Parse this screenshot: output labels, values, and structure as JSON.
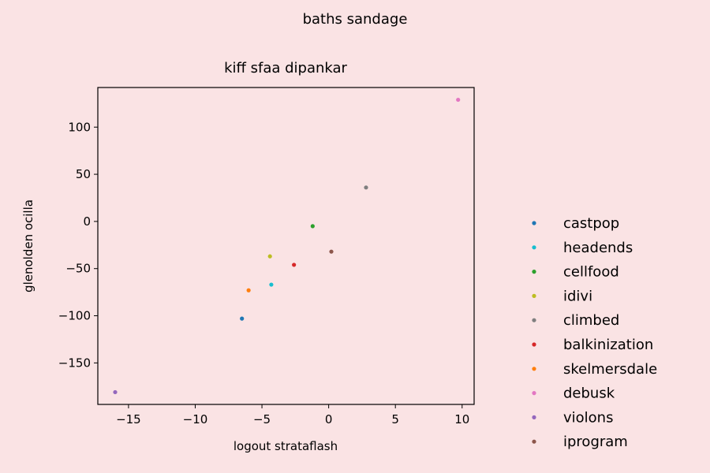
{
  "chart_data": {
    "type": "scatter",
    "suptitle": "baths sandage",
    "title": "kiff sfaa dipankar",
    "xlabel": "logout strataflash",
    "ylabel": "glenolden ocilla",
    "xlim": [
      -17.3,
      10.9
    ],
    "ylim": [
      -194,
      142
    ],
    "xticks": [
      -15,
      -10,
      -5,
      0,
      5,
      10
    ],
    "yticks": [
      -150,
      -100,
      -50,
      0,
      50,
      100
    ],
    "grid": false,
    "legend_position": "right",
    "series": [
      {
        "name": "castpop",
        "color": "#1f77b4",
        "x": [
          -6.5
        ],
        "y": [
          -103
        ]
      },
      {
        "name": "headends",
        "color": "#17becf",
        "x": [
          -4.3
        ],
        "y": [
          -67
        ]
      },
      {
        "name": "cellfood",
        "color": "#2ca02c",
        "x": [
          -1.2
        ],
        "y": [
          -5
        ]
      },
      {
        "name": "idivi",
        "color": "#bcbd22",
        "x": [
          -4.4
        ],
        "y": [
          -37
        ]
      },
      {
        "name": "climbed",
        "color": "#7f7f7f",
        "x": [
          2.8
        ],
        "y": [
          36
        ]
      },
      {
        "name": "balkinization",
        "color": "#d62728",
        "x": [
          -2.6
        ],
        "y": [
          -46
        ]
      },
      {
        "name": "skelmersdale",
        "color": "#ff7f0e",
        "x": [
          -6.0
        ],
        "y": [
          -73
        ]
      },
      {
        "name": "debusk",
        "color": "#e377c2",
        "x": [
          9.7
        ],
        "y": [
          129
        ]
      },
      {
        "name": "violons",
        "color": "#9467bd",
        "x": [
          -16.0
        ],
        "y": [
          -181
        ]
      },
      {
        "name": "iprogram",
        "color": "#8c564b",
        "x": [
          0.2
        ],
        "y": [
          -32
        ]
      }
    ]
  }
}
